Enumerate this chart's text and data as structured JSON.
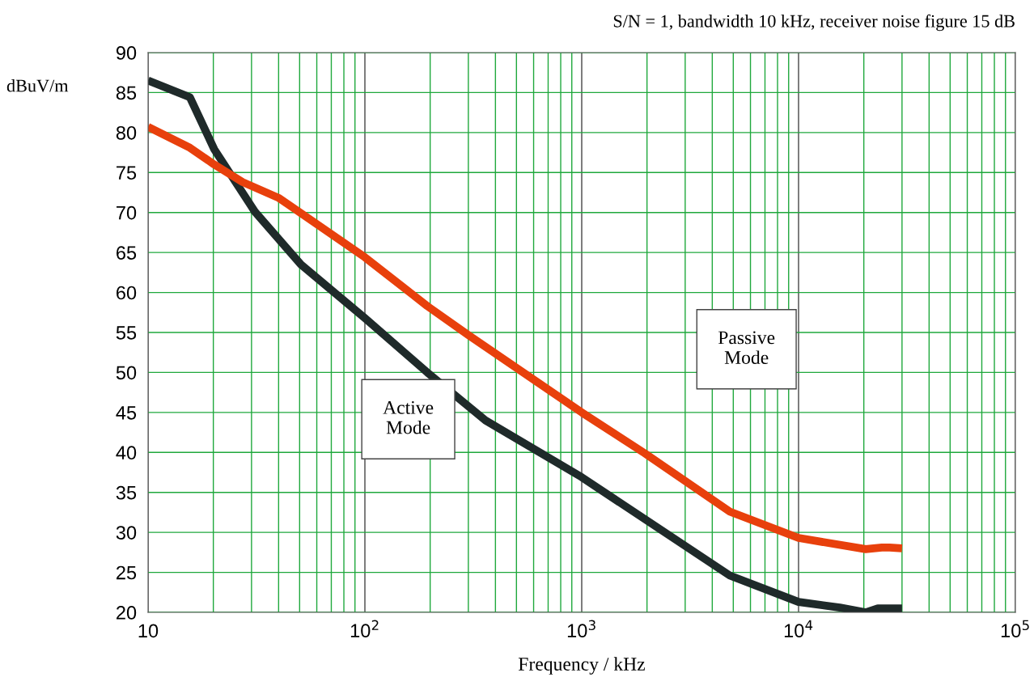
{
  "chart_data": {
    "type": "line",
    "title": "S/N = 1, bandwidth 10 kHz, receiver noise figure 15 dB",
    "xlabel": "Frequency / kHz",
    "ylabel": "dBuV/m",
    "log": "x",
    "xlim": [
      10,
      100000
    ],
    "xticks": [
      10,
      {
        "value": 100,
        "label": "10$^{2}$"
      },
      {
        "value": 1000,
        "label": "10$^{3}$"
      },
      {
        "value": 10000,
        "label": "10$^{4}$"
      },
      {
        "value": 100000,
        "label": "10$^{5}$"
      }
    ],
    "ylim": [
      20,
      90
    ],
    "yticks": [
      20,
      25,
      30,
      35,
      40,
      45,
      50,
      55,
      60,
      65,
      70,
      75,
      80,
      85,
      90
    ],
    "grid": true,
    "legend": false,
    "marker": "none",
    "line_style": "solid",
    "annotations": [
      "Active Mode",
      "Passive Mode"
    ],
    "series": [
      {
        "color": "#1f2a2a",
        "x": [
          10,
          15.6,
          20.2,
          31.1,
          50.7,
          100,
          194,
          360,
          1000,
          4820,
          10000,
          15500,
          20400,
          23200,
          30000
        ],
        "values": [
          86.5,
          84.4,
          77.9,
          70.1,
          63.5,
          56.8,
          50.0,
          44.0,
          36.9,
          24.6,
          21.3,
          20.6,
          20.0,
          20.5,
          20.5
        ]
      },
      {
        "color": "#e8400c",
        "x": [
          10,
          15.6,
          20.2,
          27.3,
          40.2,
          100,
          194,
          303,
          1000,
          1950,
          4820,
          10000,
          20400,
          24200,
          26300,
          30000
        ],
        "values": [
          80.7,
          78.1,
          76.0,
          73.8,
          71.8,
          64.4,
          58.3,
          54.6,
          45.0,
          39.9,
          32.6,
          29.3,
          27.9,
          28.1,
          28.1,
          28.0
        ]
      }
    ]
  }
}
